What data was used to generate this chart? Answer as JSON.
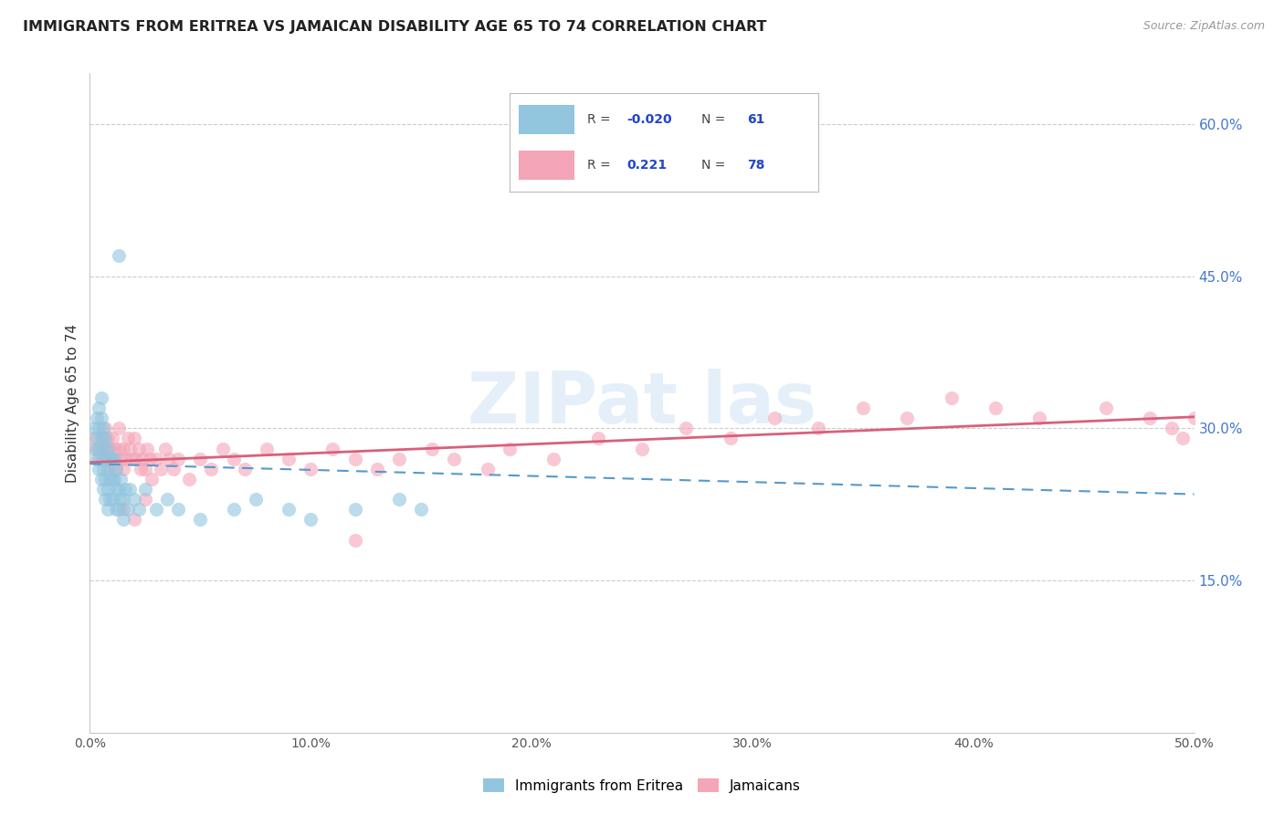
{
  "title": "IMMIGRANTS FROM ERITREA VS JAMAICAN DISABILITY AGE 65 TO 74 CORRELATION CHART",
  "source": "Source: ZipAtlas.com",
  "ylabel": "Disability Age 65 to 74",
  "watermark": "ZIPat las",
  "xlim": [
    0.0,
    0.5
  ],
  "ylim": [
    0.0,
    0.65
  ],
  "xtick_vals": [
    0.0,
    0.1,
    0.2,
    0.3,
    0.4,
    0.5
  ],
  "xtick_labels": [
    "0.0%",
    "10.0%",
    "20.0%",
    "30.0%",
    "40.0%",
    "50.0%"
  ],
  "ytick_positions": [
    0.15,
    0.3,
    0.45,
    0.6
  ],
  "ytick_labels": [
    "15.0%",
    "30.0%",
    "45.0%",
    "60.0%"
  ],
  "legend_label1": "Immigrants from Eritrea",
  "legend_label2": "Jamaicans",
  "color_blue": "#92c5de",
  "color_pink": "#f4a5b8",
  "color_blue_line": "#5599cc",
  "color_pink_line": "#d9607a",
  "scatter_alpha": 0.6,
  "scatter_size": 120,
  "background": "#ffffff",
  "grid_color": "#cccccc",
  "eritrea_x": [
    0.002,
    0.002,
    0.003,
    0.003,
    0.003,
    0.004,
    0.004,
    0.004,
    0.004,
    0.005,
    0.005,
    0.005,
    0.005,
    0.005,
    0.006,
    0.006,
    0.006,
    0.006,
    0.007,
    0.007,
    0.007,
    0.007,
    0.008,
    0.008,
    0.008,
    0.008,
    0.009,
    0.009,
    0.009,
    0.01,
    0.01,
    0.01,
    0.011,
    0.011,
    0.012,
    0.012,
    0.012,
    0.013,
    0.013,
    0.014,
    0.014,
    0.015,
    0.015,
    0.016,
    0.017,
    0.018,
    0.02,
    0.022,
    0.025,
    0.03,
    0.035,
    0.04,
    0.05,
    0.065,
    0.075,
    0.09,
    0.1,
    0.12,
    0.14,
    0.15,
    0.013
  ],
  "eritrea_y": [
    0.28,
    0.3,
    0.27,
    0.29,
    0.31,
    0.26,
    0.28,
    0.3,
    0.32,
    0.25,
    0.27,
    0.29,
    0.31,
    0.33,
    0.24,
    0.26,
    0.28,
    0.3,
    0.23,
    0.25,
    0.27,
    0.29,
    0.24,
    0.26,
    0.28,
    0.22,
    0.25,
    0.27,
    0.23,
    0.25,
    0.27,
    0.23,
    0.25,
    0.27,
    0.24,
    0.26,
    0.22,
    0.24,
    0.22,
    0.23,
    0.25,
    0.23,
    0.21,
    0.24,
    0.22,
    0.24,
    0.23,
    0.22,
    0.24,
    0.22,
    0.23,
    0.22,
    0.21,
    0.22,
    0.23,
    0.22,
    0.21,
    0.22,
    0.23,
    0.22,
    0.47
  ],
  "jamaican_x": [
    0.002,
    0.003,
    0.004,
    0.005,
    0.006,
    0.006,
    0.007,
    0.007,
    0.008,
    0.008,
    0.009,
    0.009,
    0.01,
    0.01,
    0.011,
    0.012,
    0.013,
    0.013,
    0.014,
    0.015,
    0.015,
    0.016,
    0.017,
    0.018,
    0.019,
    0.02,
    0.021,
    0.022,
    0.023,
    0.024,
    0.025,
    0.026,
    0.027,
    0.028,
    0.03,
    0.032,
    0.034,
    0.036,
    0.038,
    0.04,
    0.045,
    0.05,
    0.055,
    0.06,
    0.065,
    0.07,
    0.08,
    0.09,
    0.1,
    0.11,
    0.12,
    0.13,
    0.14,
    0.155,
    0.165,
    0.18,
    0.19,
    0.21,
    0.23,
    0.25,
    0.27,
    0.29,
    0.31,
    0.33,
    0.35,
    0.37,
    0.39,
    0.41,
    0.43,
    0.46,
    0.48,
    0.49,
    0.495,
    0.5,
    0.12,
    0.015,
    0.02,
    0.025
  ],
  "jamaican_y": [
    0.29,
    0.28,
    0.27,
    0.28,
    0.27,
    0.29,
    0.28,
    0.3,
    0.27,
    0.29,
    0.26,
    0.28,
    0.27,
    0.29,
    0.28,
    0.26,
    0.28,
    0.3,
    0.27,
    0.26,
    0.28,
    0.27,
    0.29,
    0.28,
    0.27,
    0.29,
    0.27,
    0.28,
    0.26,
    0.27,
    0.26,
    0.28,
    0.27,
    0.25,
    0.27,
    0.26,
    0.28,
    0.27,
    0.26,
    0.27,
    0.25,
    0.27,
    0.26,
    0.28,
    0.27,
    0.26,
    0.28,
    0.27,
    0.26,
    0.28,
    0.27,
    0.26,
    0.27,
    0.28,
    0.27,
    0.26,
    0.28,
    0.27,
    0.29,
    0.28,
    0.3,
    0.29,
    0.31,
    0.3,
    0.32,
    0.31,
    0.33,
    0.32,
    0.31,
    0.32,
    0.31,
    0.3,
    0.29,
    0.31,
    0.19,
    0.22,
    0.21,
    0.23
  ]
}
